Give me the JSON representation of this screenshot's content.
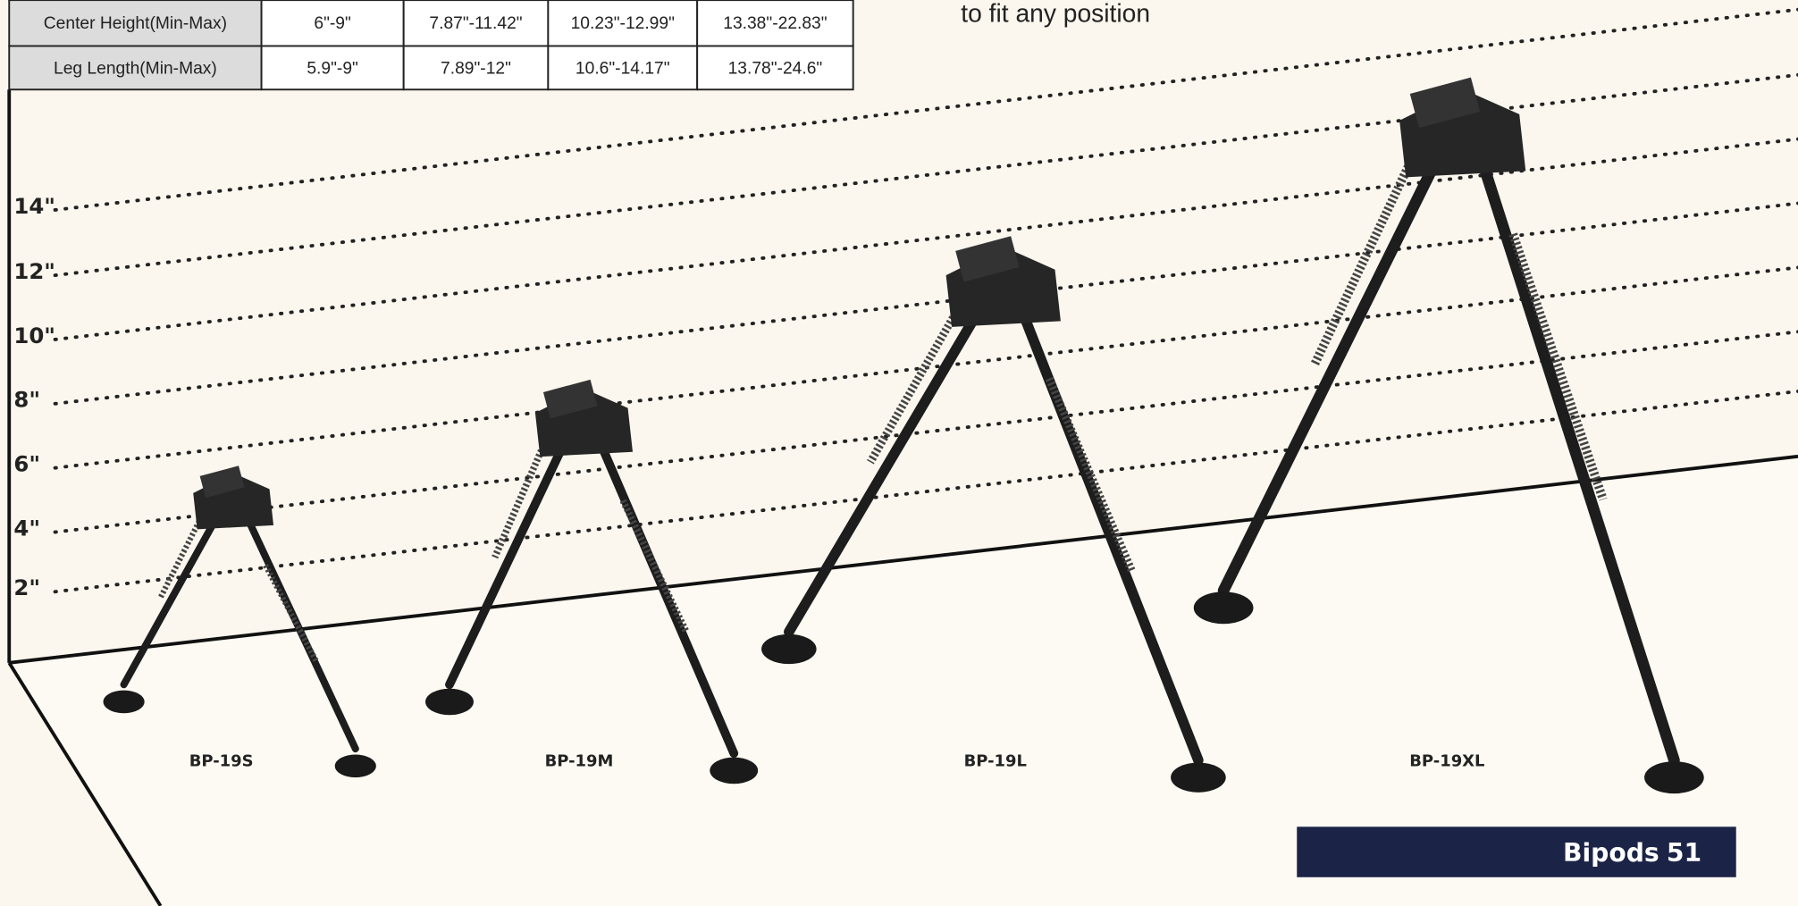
{
  "table": {
    "rows": [
      [
        "Center Height(Min-Max)",
        "6\"-9\"",
        "7.87\"-11.42\"",
        "10.23\"-12.99\"",
        "13.38\"-22.83\""
      ],
      [
        "Leg Length(Min-Max)",
        "5.9\"-9\"",
        "7.89\"-12\"",
        "10.6\"-14.17\"",
        "13.78\"-24.6\""
      ]
    ]
  },
  "caption": "to fit any position",
  "scale": [
    "14\"",
    "12\"",
    "10\"",
    "8\"",
    "6\"",
    "4\"",
    "2\""
  ],
  "products": [
    "BP-19S",
    "BP-19M",
    "BP-19L",
    "BP-19XL"
  ],
  "footer": {
    "section": "Bipods",
    "page": "51"
  }
}
